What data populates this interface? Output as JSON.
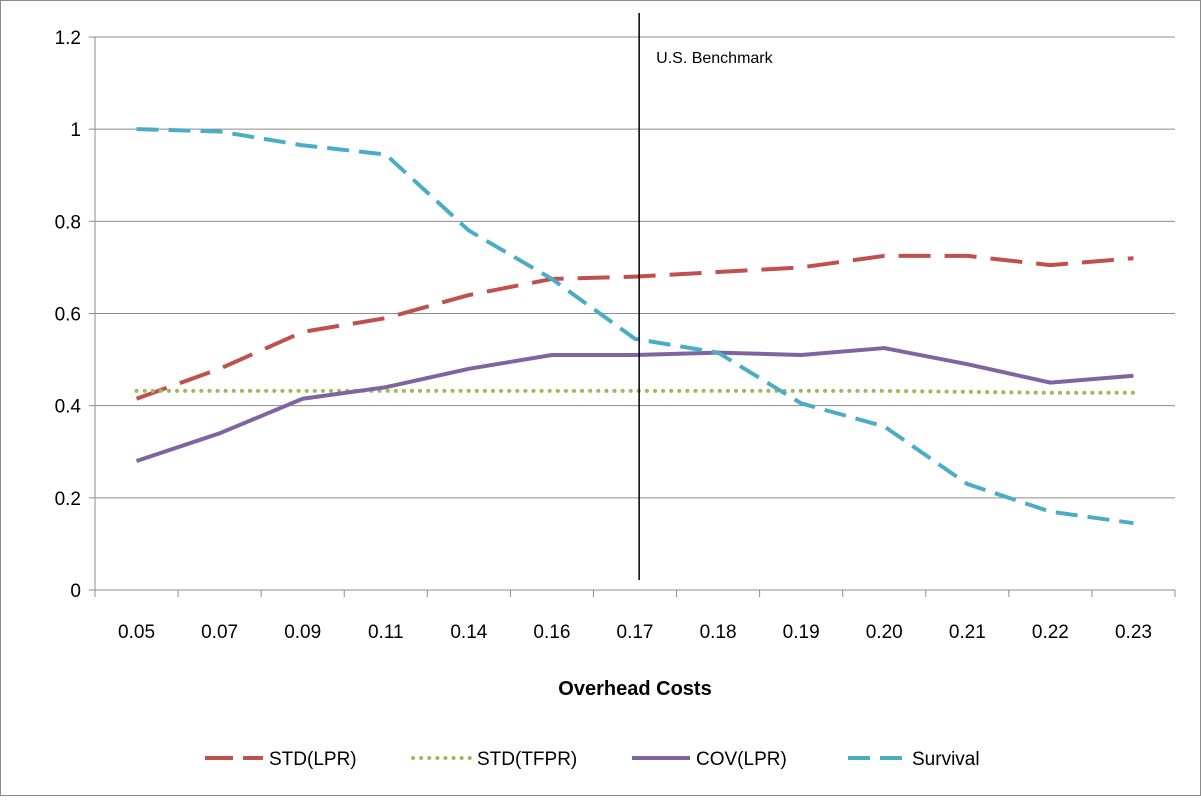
{
  "chart_data": {
    "type": "line",
    "categories": [
      "0.05",
      "0.07",
      "0.09",
      "0.11",
      "0.14",
      "0.16",
      "0.17",
      "0.18",
      "0.19",
      "0.20",
      "0.21",
      "0.22",
      "0.23"
    ],
    "xlabel": "Overhead Costs",
    "ylabel": "",
    "ylim": [
      0,
      1.2
    ],
    "yticks": [
      "0",
      "0.2",
      "0.4",
      "0.6",
      "0.8",
      "1",
      "1.2"
    ],
    "grid": true,
    "legend_position": "bottom",
    "annotation": {
      "text": "U.S. Benchmark",
      "at_category": "0.17"
    },
    "series": [
      {
        "name": "STD(LPR)",
        "style": "long-dash",
        "color": "#c0504d",
        "values": [
          0.415,
          0.48,
          0.56,
          0.59,
          0.64,
          0.675,
          0.68,
          0.69,
          0.7,
          0.725,
          0.725,
          0.705,
          0.72
        ]
      },
      {
        "name": "STD(TFPR)",
        "style": "dotted",
        "color": "#9bbb59",
        "values": [
          0.432,
          0.432,
          0.432,
          0.432,
          0.432,
          0.432,
          0.432,
          0.432,
          0.432,
          0.432,
          0.43,
          0.428,
          0.428
        ]
      },
      {
        "name": "COV(LPR)",
        "style": "solid",
        "color": "#8064a2",
        "values": [
          0.28,
          0.34,
          0.415,
          0.44,
          0.48,
          0.51,
          0.51,
          0.515,
          0.51,
          0.525,
          0.49,
          0.45,
          0.465
        ]
      },
      {
        "name": "Survival",
        "style": "dashed",
        "color": "#4bacc6",
        "values": [
          1.0,
          0.995,
          0.965,
          0.945,
          0.78,
          0.675,
          0.545,
          0.515,
          0.405,
          0.355,
          0.23,
          0.17,
          0.145
        ]
      }
    ]
  }
}
